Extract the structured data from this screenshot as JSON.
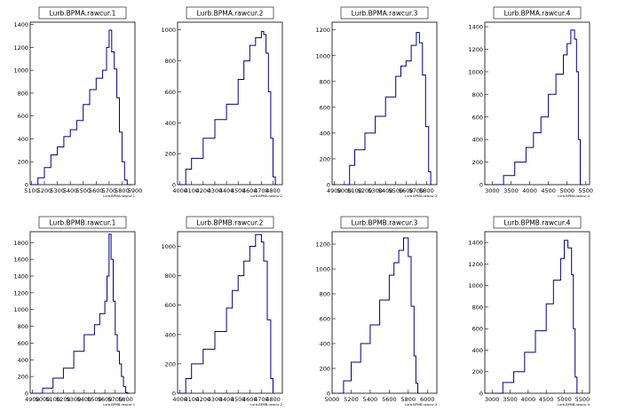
{
  "colors": {
    "line": "#000080",
    "axis": "#000000",
    "background": "#ffffff"
  },
  "chart_data": [
    {
      "type": "line",
      "title": "Lurb.BPMA.rawcur.1",
      "xlabel": "Lurb.BPMA.rawcur.1",
      "xlim": [
        5090,
        5900
      ],
      "ylim": [
        0,
        1420
      ],
      "xticks": [
        5100,
        5200,
        5300,
        5400,
        5500,
        5600,
        5700,
        5800,
        5900
      ],
      "xtick_labels": [
        "5100",
        "5200",
        "5300",
        "5400",
        "5500",
        "5600",
        "5700",
        "5800",
        "5900"
      ],
      "yticks": [
        0,
        200,
        400,
        600,
        800,
        1000,
        1200,
        1400
      ],
      "x": [
        5100,
        5150,
        5200,
        5250,
        5300,
        5350,
        5400,
        5450,
        5500,
        5550,
        5600,
        5650,
        5680,
        5700,
        5720,
        5740,
        5760,
        5780,
        5800,
        5820,
        5840,
        5860
      ],
      "y": [
        0,
        60,
        150,
        260,
        330,
        420,
        480,
        560,
        700,
        830,
        930,
        1000,
        1200,
        1350,
        1160,
        1010,
        760,
        460,
        200,
        40,
        0,
        0
      ]
    },
    {
      "type": "line",
      "title": "Lurb.BPMA.rawcur.2",
      "xlabel": "Lurb.BPMA.rawcur.2",
      "xlim": [
        3980,
        4880
      ],
      "ylim": [
        0,
        1050
      ],
      "xticks": [
        4000,
        4100,
        4200,
        4300,
        4400,
        4500,
        4600,
        4700,
        4800
      ],
      "xtick_labels": [
        "4000",
        "4100",
        "4200",
        "4300",
        "4400",
        "4500",
        "4600",
        "4700",
        "4800"
      ],
      "yticks": [
        0,
        200,
        400,
        600,
        800,
        1000
      ],
      "x": [
        4000,
        4050,
        4100,
        4200,
        4300,
        4400,
        4500,
        4550,
        4600,
        4650,
        4700,
        4720,
        4740,
        4760,
        4780,
        4800,
        4820
      ],
      "y": [
        0,
        100,
        170,
        300,
        420,
        520,
        680,
        800,
        900,
        950,
        990,
        970,
        850,
        600,
        300,
        50,
        0
      ]
    },
    {
      "type": "line",
      "title": "Lurb.BPMA.rawcur.3",
      "xlabel": "Lurb.BPMA.rawcur.3",
      "xlim": [
        4880,
        5900
      ],
      "ylim": [
        0,
        1260
      ],
      "xticks": [
        4900,
        5000,
        5100,
        5200,
        5300,
        5400,
        5500,
        5600,
        5700,
        5800
      ],
      "xtick_labels": [
        "4900",
        "5000",
        "5100",
        "5200",
        "5300",
        "5400",
        "5500",
        "5600",
        "5700",
        "5800"
      ],
      "yticks": [
        0,
        200,
        400,
        600,
        800,
        1000,
        1200
      ],
      "x": [
        4980,
        5050,
        5100,
        5200,
        5300,
        5400,
        5500,
        5550,
        5600,
        5650,
        5700,
        5730,
        5760,
        5790,
        5820,
        5840
      ],
      "y": [
        0,
        150,
        270,
        400,
        530,
        680,
        840,
        920,
        960,
        1080,
        1180,
        1100,
        850,
        450,
        100,
        0
      ]
    },
    {
      "type": "line",
      "title": "Lurb.BPMA.rawcur.4",
      "xlabel": "Lurb.BPMA.rawcur.4",
      "xlim": [
        2800,
        5600
      ],
      "ylim": [
        0,
        1440
      ],
      "xticks": [
        3000,
        3500,
        4000,
        4500,
        5000,
        5500
      ],
      "xtick_labels": [
        "3000",
        "3500",
        "4000",
        "4500",
        "5000",
        "5500"
      ],
      "yticks": [
        0,
        200,
        400,
        600,
        800,
        1000,
        1200,
        1400
      ],
      "x": [
        3000,
        3300,
        3600,
        3900,
        4100,
        4300,
        4500,
        4700,
        4900,
        5000,
        5100,
        5200,
        5250,
        5300,
        5350
      ],
      "y": [
        0,
        80,
        200,
        330,
        460,
        600,
        800,
        980,
        1150,
        1250,
        1370,
        1290,
        1000,
        400,
        0
      ]
    },
    {
      "type": "line",
      "title": "Lurb.BPMB.rawcur.1",
      "xlabel": "Lurb.BPMB.rawcur.1",
      "xlim": [
        4880,
        5890
      ],
      "ylim": [
        0,
        1930
      ],
      "xticks": [
        4900,
        5000,
        5100,
        5200,
        5300,
        5400,
        5500,
        5600,
        5700,
        5800
      ],
      "xtick_labels": [
        "4900",
        "5000",
        "5100",
        "5200",
        "5300",
        "5400",
        "5500",
        "5600",
        "5700",
        "5800"
      ],
      "yticks": [
        0,
        200,
        400,
        600,
        800,
        1000,
        1200,
        1400,
        1600,
        1800
      ],
      "x": [
        4900,
        5000,
        5100,
        5200,
        5300,
        5400,
        5500,
        5550,
        5600,
        5620,
        5640,
        5660,
        5680,
        5700,
        5720,
        5740,
        5760,
        5780,
        5800,
        5820
      ],
      "y": [
        0,
        60,
        180,
        300,
        500,
        700,
        820,
        950,
        1100,
        1400,
        1900,
        1600,
        1100,
        700,
        500,
        350,
        200,
        80,
        10,
        0
      ]
    },
    {
      "type": "line",
      "title": "Lurb.BPMB.rawcur.2",
      "xlabel": "Lurb.BPMB.rawcur.2",
      "xlim": [
        3980,
        4880
      ],
      "ylim": [
        0,
        1100
      ],
      "xticks": [
        4000,
        4100,
        4200,
        4300,
        4400,
        4500,
        4600,
        4700,
        4800
      ],
      "xtick_labels": [
        "4000",
        "4100",
        "4200",
        "4300",
        "4400",
        "4500",
        "4600",
        "4700",
        "4800"
      ],
      "yticks": [
        0,
        200,
        400,
        600,
        800,
        1000
      ],
      "x": [
        4000,
        4050,
        4100,
        4200,
        4300,
        4400,
        4450,
        4500,
        4550,
        4600,
        4650,
        4700,
        4720,
        4750,
        4780,
        4800
      ],
      "y": [
        0,
        100,
        200,
        300,
        420,
        580,
        700,
        800,
        900,
        1000,
        1080,
        1030,
        900,
        500,
        100,
        0
      ]
    },
    {
      "type": "line",
      "title": "Lurb.BPMB.rawcur.3",
      "xlabel": "Lurb.BPMB.rawcur.3",
      "xlim": [
        5000,
        6100
      ],
      "ylim": [
        0,
        1300
      ],
      "xticks": [
        5000,
        5200,
        5400,
        5600,
        5800,
        6000
      ],
      "xtick_labels": [
        "5000",
        "5200",
        "5400",
        "5600",
        "5800",
        "6000"
      ],
      "yticks": [
        0,
        200,
        400,
        600,
        800,
        1000,
        1200
      ],
      "x": [
        5060,
        5120,
        5200,
        5300,
        5400,
        5500,
        5600,
        5650,
        5700,
        5750,
        5800,
        5830,
        5860,
        5880,
        5900
      ],
      "y": [
        0,
        100,
        250,
        400,
        550,
        750,
        950,
        1050,
        1150,
        1250,
        1100,
        700,
        300,
        80,
        0
      ]
    },
    {
      "type": "line",
      "title": "Lurb.BPMB.rawcur.4",
      "xlabel": "Lurb.BPMB.rawcur.4",
      "xlim": [
        2800,
        5700
      ],
      "ylim": [
        0,
        1500
      ],
      "xticks": [
        3000,
        3500,
        4000,
        4500,
        5000,
        5500
      ],
      "xtick_labels": [
        "3000",
        "3500",
        "4000",
        "4500",
        "5000",
        "5500"
      ],
      "yticks": [
        0,
        200,
        400,
        600,
        800,
        1000,
        1200,
        1400
      ],
      "x": [
        3000,
        3300,
        3600,
        3900,
        4200,
        4500,
        4700,
        4900,
        5000,
        5100,
        5200,
        5250,
        5300,
        5350
      ],
      "y": [
        0,
        100,
        200,
        380,
        580,
        830,
        1050,
        1250,
        1420,
        1350,
        1100,
        600,
        150,
        0
      ]
    }
  ]
}
